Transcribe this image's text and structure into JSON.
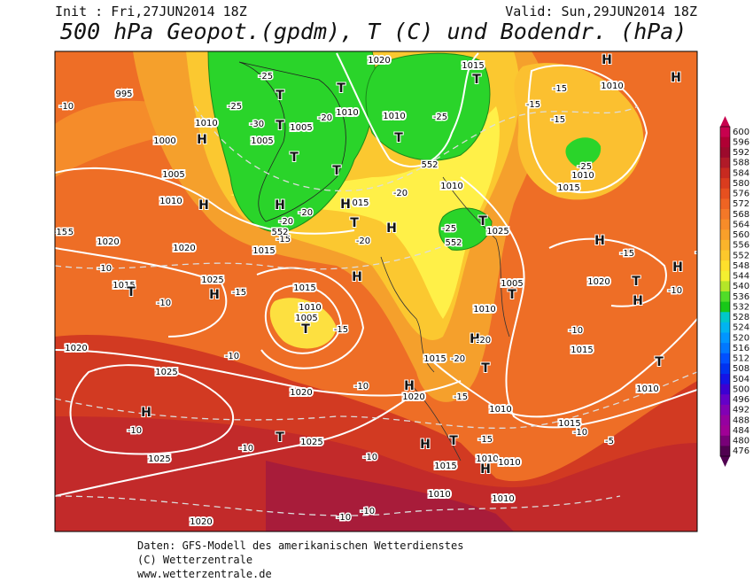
{
  "header": {
    "init": "Init : Fri,27JUN2014 18Z",
    "valid": "Valid: Sun,29JUN2014 18Z",
    "title": "500 hPa Geopot.(gpdm), T (C) und Bodendr. (hPa)"
  },
  "legend": {
    "labels": [
      600,
      596,
      592,
      588,
      584,
      580,
      576,
      572,
      568,
      564,
      560,
      556,
      552,
      548,
      544,
      540,
      536,
      532,
      528,
      524,
      520,
      516,
      512,
      508,
      504,
      500,
      496,
      492,
      488,
      484,
      480,
      476
    ]
  },
  "map": {
    "isobar_labels": [
      "1020",
      "1015",
      "1010",
      "995",
      "1010",
      "1000",
      "1005",
      "1005",
      "1010",
      "1010",
      "1010",
      "1015",
      "1005",
      "1010",
      "1010",
      "1020",
      "1020",
      "1015",
      "1025",
      "1015",
      "1015",
      "1010",
      "1005",
      "1020",
      "1025",
      "1020",
      "1020",
      "1015",
      "1025",
      "1025",
      "1020",
      "1015",
      "1010",
      "1010",
      "1010",
      "1010",
      "1010",
      "1015",
      "1010",
      "1015",
      "1005",
      "1010",
      "1020",
      "1025",
      "015"
    ],
    "pressure_centers": [
      "H",
      "T",
      "H",
      "T",
      "T",
      "H",
      "T",
      "T",
      "T",
      "T",
      "H",
      "H",
      "H",
      "T",
      "H",
      "T",
      "H",
      "H",
      "T",
      "H",
      "T",
      "H",
      "H",
      "T",
      "T",
      "H",
      "T",
      "H",
      "T",
      "H",
      "T",
      "H",
      "T",
      "H"
    ],
    "temperature_labels": [
      "-10",
      "-25",
      "-25",
      "-30",
      "-20",
      "-25",
      "-15",
      "-15",
      "-15",
      "-20",
      "-20",
      "-20",
      "-15",
      "-25",
      "-15",
      "-20",
      "-15",
      "-10",
      "-15",
      "-10",
      "-10",
      "-15",
      "-20",
      "-10",
      "-10",
      "-10",
      "-15",
      "-10",
      "-10",
      "-5",
      "-10",
      "-10",
      "-10",
      "-15",
      "-10",
      "-10",
      "-15",
      "-20",
      "-25"
    ],
    "height_labels": [
      "552",
      "552",
      "552"
    ]
  },
  "footer": {
    "lines": [
      "Daten: GFS-Modell des amerikanischen Wetterdienstes",
      "(C) Wetterzentrale",
      "www.wetterzentrale.de"
    ]
  }
}
